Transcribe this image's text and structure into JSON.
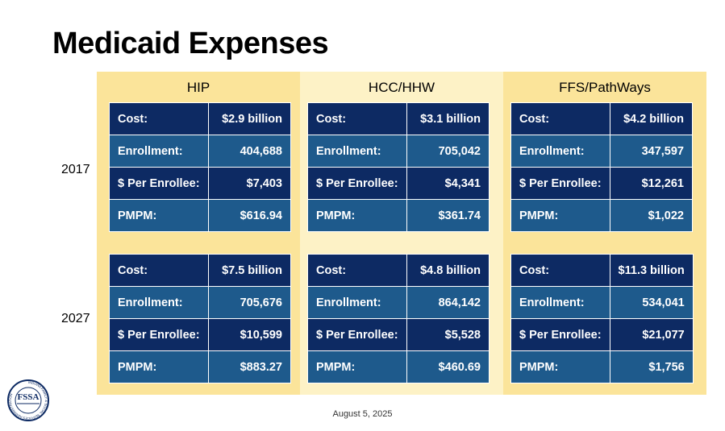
{
  "title": "Medicaid Expenses",
  "columns": [
    "HIP",
    "HCC/HHW",
    "FFS/PathWays"
  ],
  "years": [
    "2017",
    "2027"
  ],
  "row_labels": [
    "Cost:",
    "Enrollment:",
    "$ Per Enrollee:",
    "PMPM:"
  ],
  "tables": {
    "y2017": {
      "hip": [
        "$2.9 billion",
        "404,688",
        "$7,403",
        "$616.94"
      ],
      "hcc": [
        "$3.1 billion",
        "705,042",
        "$4,341",
        "$361.74"
      ],
      "ffs": [
        "$4.2 billion",
        "347,597",
        "$12,261",
        "$1,022"
      ]
    },
    "y2027": {
      "hip": [
        "$7.5 billion",
        "705,676",
        "$10,599",
        "$883.27"
      ],
      "hcc": [
        "$4.8 billion",
        "864,142",
        "$5,528",
        "$460.69"
      ],
      "ffs": [
        "$11.3 billion",
        "534,041",
        "$21,077",
        "$1,756"
      ]
    }
  },
  "footer_date": "August 5, 2025",
  "colors": {
    "dark_row": "#0d2a63",
    "light_row": "#1e5a8c",
    "column_yellow": "#fbe49a",
    "column_light_yellow": "#fdf2c6"
  },
  "logo": {
    "icon": "fssa-seal-icon",
    "letters": "FSSA",
    "ring_text": "INDIANA FAMILY & SOCIAL SERVICES ADMINISTRATION"
  }
}
